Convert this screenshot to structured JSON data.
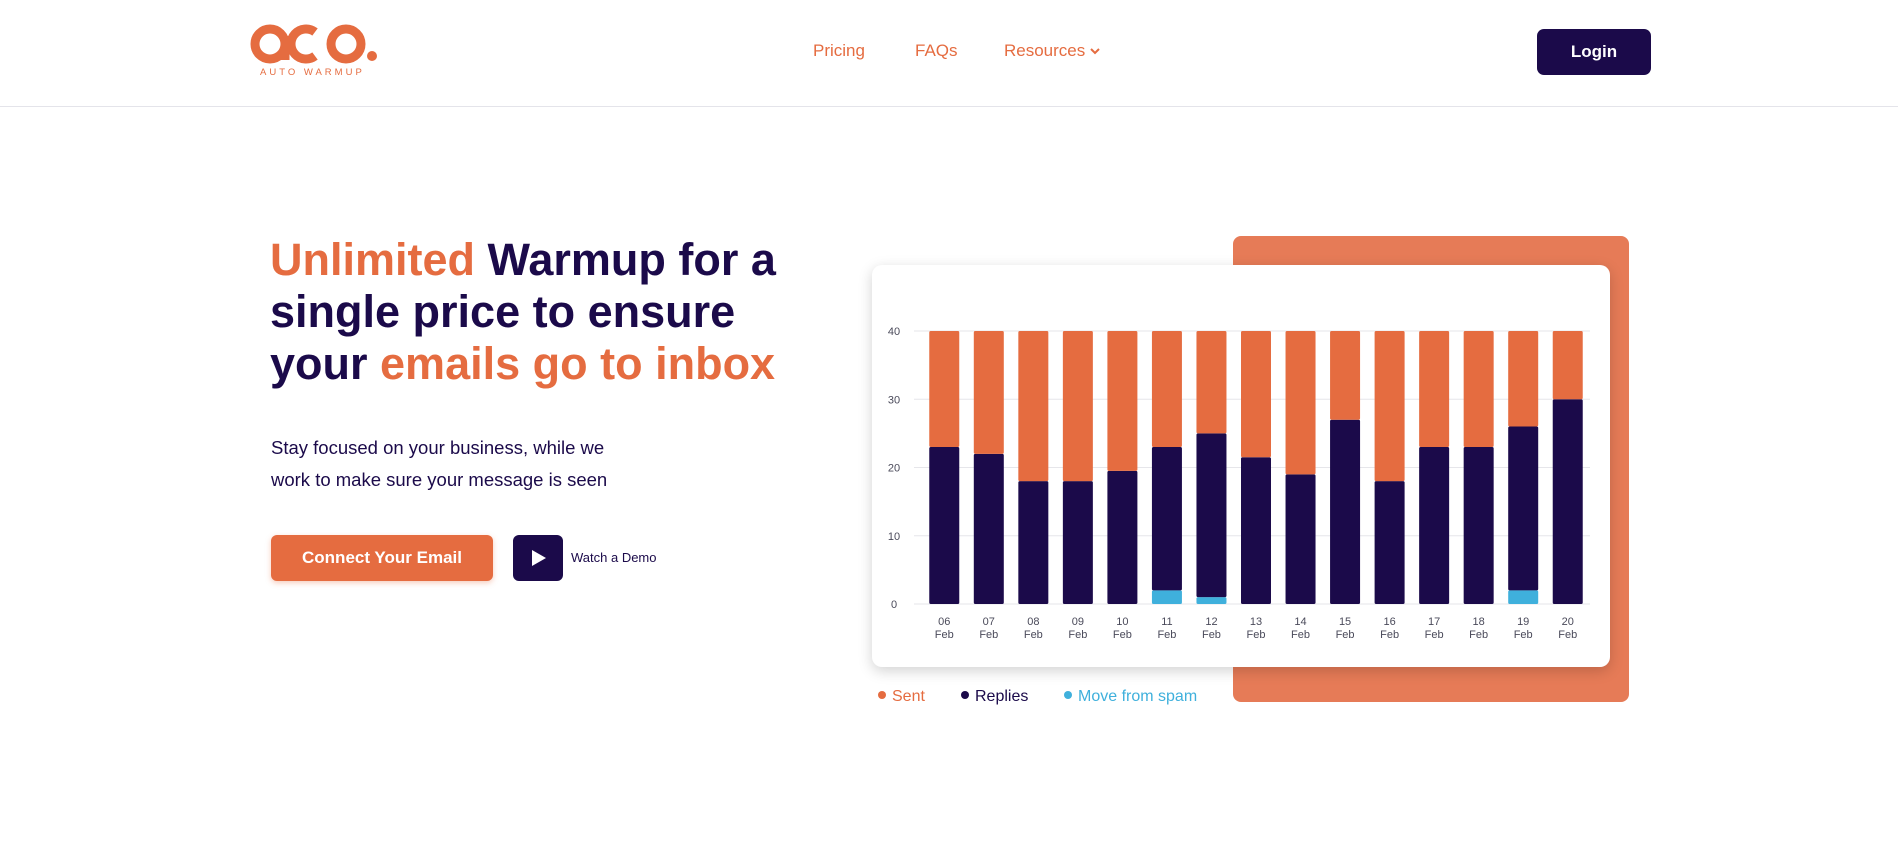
{
  "brand": {
    "logo_mark": "aco.",
    "logo_subtitle": "AUTO WARMUP"
  },
  "nav": {
    "items": [
      {
        "label": "Pricing"
      },
      {
        "label": "FAQs"
      },
      {
        "label": "Resources",
        "icon": "chevron-down-icon"
      }
    ],
    "login_label": "Login"
  },
  "hero": {
    "title_part1": "Unlimited",
    "title_part2": " Warmup for a single price to ensure your ",
    "title_part3": "emails go to inbox",
    "subtitle_line1": "Stay focused on your business, while we",
    "subtitle_line2": "work to make sure your message is seen",
    "cta_label": "Connect Your Email",
    "demo_label": "Watch a Demo",
    "demo_icon": "play-icon"
  },
  "colors": {
    "accent": "#e56c40",
    "primary": "#1b0a4a",
    "spam": "#3fb0dc",
    "panel": "#e67b57"
  },
  "chart_data": {
    "type": "bar",
    "stacked": true,
    "categories": [
      "06 Feb",
      "07 Feb",
      "08 Feb",
      "09 Feb",
      "10 Feb",
      "11 Feb",
      "12 Feb",
      "13 Feb",
      "14 Feb",
      "15 Feb",
      "16 Feb",
      "17 Feb",
      "18 Feb",
      "19 Feb",
      "20 Feb"
    ],
    "series": [
      {
        "name": "Move from spam",
        "color": "#3fb0dc",
        "values": [
          0,
          0,
          0,
          0,
          0,
          2,
          1,
          0,
          0,
          0,
          0,
          0,
          0,
          2,
          0
        ]
      },
      {
        "name": "Replies",
        "color": "#1b0a4a",
        "values": [
          23,
          22,
          18,
          18,
          19.5,
          21,
          24,
          21.5,
          19,
          27,
          18,
          23,
          23,
          24,
          30
        ]
      },
      {
        "name": "Sent",
        "color": "#e56c40",
        "values": [
          17,
          18,
          22,
          22,
          20.5,
          17,
          15,
          18.5,
          21,
          13,
          22,
          17,
          17,
          14,
          10
        ]
      }
    ],
    "yticks": [
      0,
      10,
      20,
      30,
      40
    ],
    "ylim": [
      0,
      40
    ],
    "legend_position": "bottom-left",
    "grid": true
  }
}
